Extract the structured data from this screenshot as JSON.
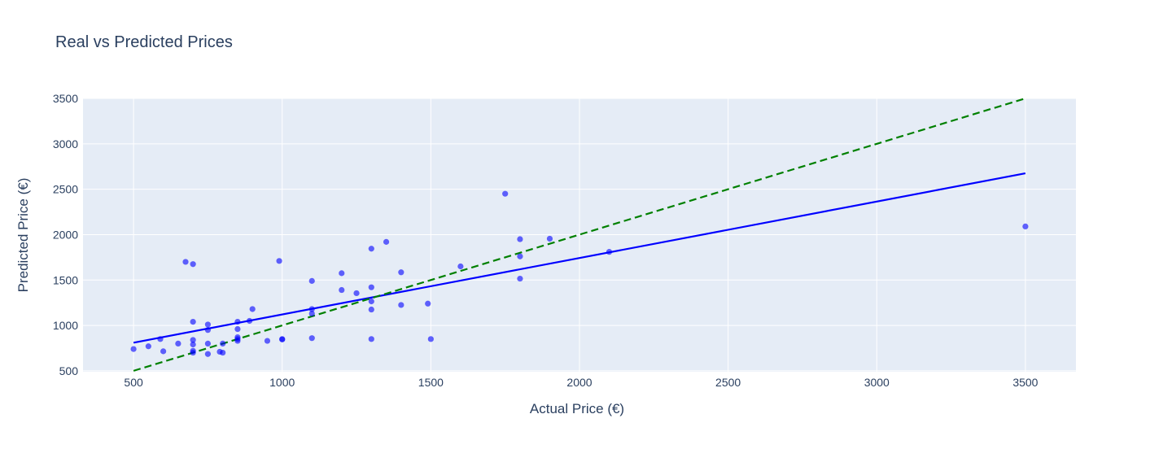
{
  "chart_data": {
    "type": "scatter",
    "title": "Real vs Predicted Prices",
    "xlabel": "Actual Price (€)",
    "ylabel": "Predicted Price (€)",
    "xlim": [
      330,
      3670
    ],
    "ylim": [
      490,
      3500
    ],
    "x_ticks": [
      500,
      1000,
      1500,
      2000,
      2500,
      3000,
      3500
    ],
    "y_ticks": [
      500,
      1000,
      1500,
      2000,
      2500,
      3000,
      3500
    ],
    "grid": true,
    "legend": "none",
    "colors": {
      "background": "#e5ecf6",
      "grid": "#ffffff",
      "points": "#0000ff",
      "fit_line": "#0000ff",
      "identity_line": "#008000",
      "text": "#2a3f5f"
    },
    "series": [
      {
        "type": "scatter",
        "points": [
          [
            500,
            740
          ],
          [
            550,
            770
          ],
          [
            590,
            850
          ],
          [
            600,
            715
          ],
          [
            650,
            800
          ],
          [
            675,
            1700
          ],
          [
            700,
            1675
          ],
          [
            700,
            1040
          ],
          [
            700,
            840
          ],
          [
            700,
            790
          ],
          [
            700,
            720
          ],
          [
            700,
            700
          ],
          [
            750,
            1010
          ],
          [
            750,
            950
          ],
          [
            750,
            800
          ],
          [
            750,
            685
          ],
          [
            790,
            710
          ],
          [
            800,
            800
          ],
          [
            800,
            700
          ],
          [
            850,
            1040
          ],
          [
            850,
            960
          ],
          [
            850,
            870
          ],
          [
            850,
            850
          ],
          [
            850,
            830
          ],
          [
            890,
            1050
          ],
          [
            900,
            1180
          ],
          [
            950,
            830
          ],
          [
            990,
            1710
          ],
          [
            1000,
            850
          ],
          [
            1000,
            845
          ],
          [
            1100,
            1490
          ],
          [
            1100,
            1180
          ],
          [
            1100,
            1130
          ],
          [
            1100,
            860
          ],
          [
            1200,
            1575
          ],
          [
            1200,
            1390
          ],
          [
            1250,
            1355
          ],
          [
            1300,
            1845
          ],
          [
            1300,
            1420
          ],
          [
            1300,
            1265
          ],
          [
            1300,
            1175
          ],
          [
            1300,
            850
          ],
          [
            1350,
            1920
          ],
          [
            1400,
            1585
          ],
          [
            1400,
            1225
          ],
          [
            1490,
            1240
          ],
          [
            1500,
            850
          ],
          [
            1600,
            1650
          ],
          [
            1750,
            2450
          ],
          [
            1800,
            1950
          ],
          [
            1800,
            1760
          ],
          [
            1800,
            1515
          ],
          [
            1900,
            1955
          ],
          [
            2100,
            1810
          ],
          [
            3500,
            2090
          ]
        ]
      },
      {
        "type": "line",
        "style": "solid",
        "points": [
          [
            500,
            810
          ],
          [
            3500,
            2675
          ]
        ]
      },
      {
        "type": "line",
        "style": "dashed",
        "points": [
          [
            500,
            500
          ],
          [
            3500,
            3500
          ]
        ]
      }
    ]
  }
}
